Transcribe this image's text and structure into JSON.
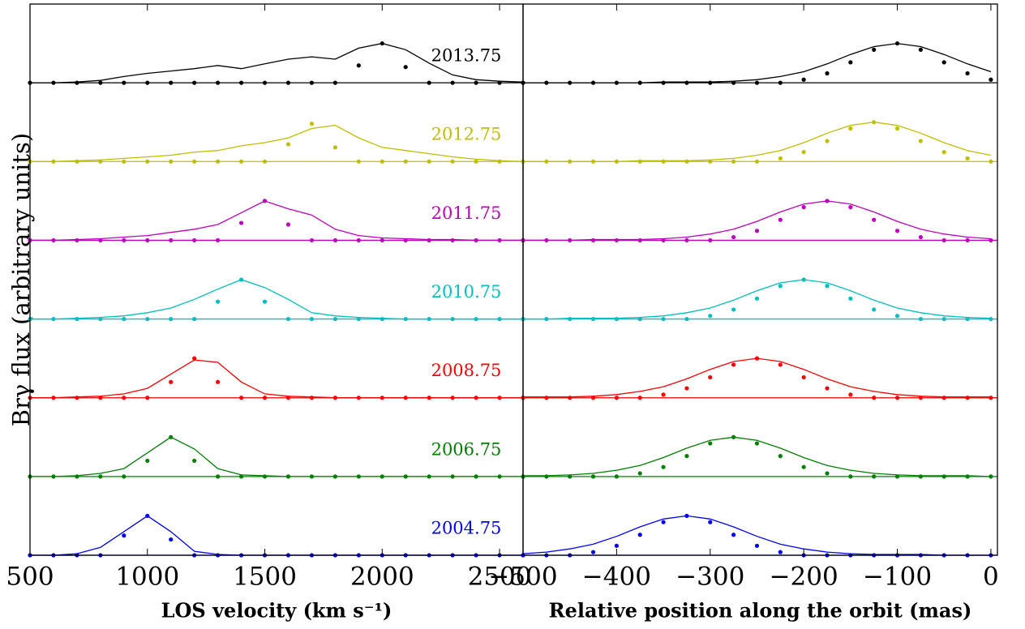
{
  "chart_data": {
    "type": "line",
    "ylabel": "Brγ flux (arbitrary units)",
    "panels": [
      {
        "xlabel": "LOS velocity (km s⁻¹)",
        "x": [
          500,
          600,
          700,
          800,
          900,
          1000,
          1100,
          1200,
          1300,
          1400,
          1500,
          1600,
          1700,
          1800,
          1900,
          2000,
          2100,
          2200,
          2300,
          2400,
          2500,
          2600
        ],
        "xlim": [
          500,
          2600
        ],
        "xticks": [
          500,
          1000,
          1500,
          2000,
          2500
        ],
        "series": [
          {
            "name": "2013.75",
            "color": "#000000",
            "line": [
              0,
              0,
              0.01,
              0.03,
              0.08,
              0.12,
              0.15,
              0.18,
              0.22,
              0.18,
              0.24,
              0.3,
              0.33,
              0.3,
              0.44,
              0.5,
              0.42,
              0.25,
              0.1,
              0.04,
              0.02,
              0.01
            ],
            "dots": [
              0,
              0,
              0,
              0,
              0,
              0,
              0,
              0,
              0,
              0,
              0,
              0,
              0,
              0,
              0.22,
              0.5,
              0.2,
              0,
              0,
              0,
              0,
              0
            ]
          },
          {
            "name": "2012.75",
            "color": "#bfbf00",
            "line": [
              0,
              0,
              0.01,
              0.02,
              0.04,
              0.06,
              0.08,
              0.12,
              0.14,
              0.2,
              0.24,
              0.3,
              0.42,
              0.46,
              0.3,
              0.18,
              0.14,
              0.1,
              0.06,
              0.03,
              0.01,
              0
            ],
            "dots": [
              0,
              0,
              0,
              0,
              0,
              0,
              0,
              0,
              0,
              0,
              0,
              0.22,
              0.48,
              0.18,
              0,
              0,
              0,
              0,
              0,
              0,
              0,
              0
            ]
          },
          {
            "name": "2011.75",
            "color": "#bf00bf",
            "line": [
              0,
              0,
              0.01,
              0.02,
              0.04,
              0.06,
              0.1,
              0.14,
              0.2,
              0.35,
              0.5,
              0.4,
              0.32,
              0.14,
              0.06,
              0.03,
              0.02,
              0.01,
              0.01,
              0,
              0,
              0
            ],
            "dots": [
              0,
              0,
              0,
              0,
              0,
              0,
              0,
              0,
              0,
              0.22,
              0.5,
              0.2,
              0,
              0,
              0,
              0,
              0,
              0,
              0,
              0,
              0,
              0
            ]
          },
          {
            "name": "2010.75",
            "color": "#00bfbf",
            "line": [
              0,
              0,
              0.01,
              0.02,
              0.04,
              0.08,
              0.14,
              0.25,
              0.38,
              0.5,
              0.4,
              0.25,
              0.08,
              0.04,
              0.02,
              0.01,
              0,
              0,
              0,
              0,
              0,
              0
            ],
            "dots": [
              0,
              0,
              0,
              0,
              0,
              0,
              0,
              0,
              0.22,
              0.5,
              0.22,
              0,
              0,
              0,
              0,
              0,
              0,
              0,
              0,
              0,
              0,
              0
            ]
          },
          {
            "name": "2008.75",
            "color": "#ff0000",
            "line": [
              0,
              0,
              0.01,
              0.02,
              0.05,
              0.12,
              0.3,
              0.48,
              0.45,
              0.2,
              0.05,
              0.02,
              0.01,
              0,
              0,
              0,
              0,
              0,
              0,
              0,
              0,
              0
            ],
            "dots": [
              0,
              0,
              0,
              0,
              0,
              0,
              0.2,
              0.5,
              0.2,
              0,
              0,
              0,
              0,
              0,
              0,
              0,
              0,
              0,
              0,
              0,
              0,
              0
            ]
          },
          {
            "name": "2006.75",
            "color": "#008000",
            "line": [
              0,
              0,
              0.01,
              0.04,
              0.1,
              0.3,
              0.5,
              0.35,
              0.1,
              0.02,
              0.01,
              0,
              0,
              0,
              0,
              0,
              0,
              0,
              0,
              0,
              0,
              0
            ],
            "dots": [
              0,
              0,
              0,
              0,
              0,
              0.2,
              0.5,
              0.2,
              0,
              0,
              0,
              0,
              0,
              0,
              0,
              0,
              0,
              0,
              0,
              0,
              0,
              0
            ]
          },
          {
            "name": "2004.75",
            "color": "#0000ff",
            "line": [
              0,
              0,
              0.02,
              0.1,
              0.3,
              0.5,
              0.3,
              0.05,
              0.01,
              0,
              0,
              0,
              0,
              0,
              0,
              0,
              0,
              0,
              0,
              0,
              0,
              0
            ],
            "dots": [
              0,
              0,
              0,
              0,
              0.25,
              0.5,
              0.2,
              0,
              0,
              0,
              0,
              0,
              0,
              0,
              0,
              0,
              0,
              0,
              0,
              0,
              0,
              0
            ]
          }
        ]
      },
      {
        "xlabel": "Relative position along the orbit (mas)",
        "x": [
          -500,
          -475,
          -450,
          -425,
          -400,
          -375,
          -350,
          -325,
          -300,
          -275,
          -250,
          -225,
          -200,
          -175,
          -150,
          -125,
          -100,
          -75,
          -50,
          -25,
          0
        ],
        "xlim": [
          -500,
          7
        ],
        "xticks": [
          {
            "value": -500,
            "label": "−500"
          },
          {
            "value": -400,
            "label": "−400"
          },
          {
            "value": -300,
            "label": "−300"
          },
          {
            "value": -200,
            "label": "−200"
          },
          {
            "value": -100,
            "label": "−100"
          },
          0
        ],
        "series": [
          {
            "color": "#000000",
            "line": [
              0,
              0,
              0,
              0,
              0,
              0,
              0.01,
              0.01,
              0.01,
              0.02,
              0.04,
              0.08,
              0.14,
              0.24,
              0.36,
              0.46,
              0.5,
              0.46,
              0.36,
              0.24,
              0.14
            ],
            "dots": [
              0,
              0,
              0,
              0,
              0,
              0,
              0,
              0,
              0,
              0,
              0,
              0,
              0.04,
              0.12,
              0.26,
              0.42,
              0.5,
              0.42,
              0.26,
              0.12,
              0.04
            ]
          },
          {
            "color": "#bfbf00",
            "line": [
              0,
              0,
              0,
              0,
              0,
              0.01,
              0.01,
              0.01,
              0.02,
              0.04,
              0.08,
              0.14,
              0.24,
              0.36,
              0.46,
              0.5,
              0.46,
              0.36,
              0.24,
              0.14,
              0.08
            ],
            "dots": [
              0,
              0,
              0,
              0,
              0,
              0,
              0,
              0,
              0,
              0,
              0,
              0.04,
              0.12,
              0.26,
              0.42,
              0.5,
              0.42,
              0.26,
              0.12,
              0.04,
              0
            ]
          },
          {
            "color": "#bf00bf",
            "line": [
              0,
              0,
              0,
              0.01,
              0.01,
              0.01,
              0.02,
              0.04,
              0.08,
              0.14,
              0.24,
              0.36,
              0.46,
              0.5,
              0.46,
              0.36,
              0.24,
              0.14,
              0.08,
              0.04,
              0.02
            ],
            "dots": [
              0,
              0,
              0,
              0,
              0,
              0,
              0,
              0,
              0,
              0.04,
              0.12,
              0.26,
              0.42,
              0.5,
              0.42,
              0.26,
              0.12,
              0.04,
              0,
              0,
              0
            ]
          },
          {
            "color": "#00bfbf",
            "line": [
              0,
              0,
              0.01,
              0.01,
              0.01,
              0.02,
              0.04,
              0.08,
              0.14,
              0.24,
              0.36,
              0.46,
              0.5,
              0.46,
              0.36,
              0.24,
              0.14,
              0.08,
              0.04,
              0.02,
              0.01
            ],
            "dots": [
              0,
              0,
              0,
              0,
              0,
              0,
              0,
              0,
              0.04,
              0.12,
              0.26,
              0.42,
              0.5,
              0.42,
              0.26,
              0.12,
              0.04,
              0,
              0,
              0,
              0
            ]
          },
          {
            "color": "#ff0000",
            "line": [
              0.01,
              0.01,
              0.01,
              0.02,
              0.04,
              0.08,
              0.14,
              0.24,
              0.36,
              0.46,
              0.5,
              0.46,
              0.36,
              0.24,
              0.14,
              0.08,
              0.04,
              0.02,
              0.01,
              0.01,
              0.01
            ],
            "dots": [
              0,
              0,
              0,
              0,
              0,
              0,
              0.04,
              0.12,
              0.26,
              0.42,
              0.5,
              0.42,
              0.26,
              0.12,
              0.04,
              0,
              0,
              0,
              0,
              0,
              0
            ]
          },
          {
            "color": "#008000",
            "line": [
              0.01,
              0.01,
              0.02,
              0.04,
              0.08,
              0.14,
              0.24,
              0.36,
              0.46,
              0.5,
              0.46,
              0.36,
              0.24,
              0.14,
              0.08,
              0.04,
              0.02,
              0.01,
              0.01,
              0.01,
              0
            ],
            "dots": [
              0,
              0,
              0,
              0,
              0,
              0.04,
              0.12,
              0.26,
              0.42,
              0.5,
              0.42,
              0.26,
              0.12,
              0.04,
              0,
              0,
              0,
              0,
              0,
              0,
              0
            ]
          },
          {
            "color": "#0000ff",
            "line": [
              0.02,
              0.04,
              0.08,
              0.14,
              0.24,
              0.36,
              0.46,
              0.5,
              0.46,
              0.36,
              0.24,
              0.14,
              0.08,
              0.04,
              0.02,
              0.01,
              0.01,
              0.01,
              0,
              0,
              0
            ],
            "dots": [
              0,
              0,
              0,
              0.04,
              0.12,
              0.26,
              0.42,
              0.5,
              0.42,
              0.26,
              0.12,
              0.04,
              0,
              0,
              0,
              0,
              0,
              0,
              0,
              0,
              0
            ]
          }
        ]
      }
    ]
  }
}
